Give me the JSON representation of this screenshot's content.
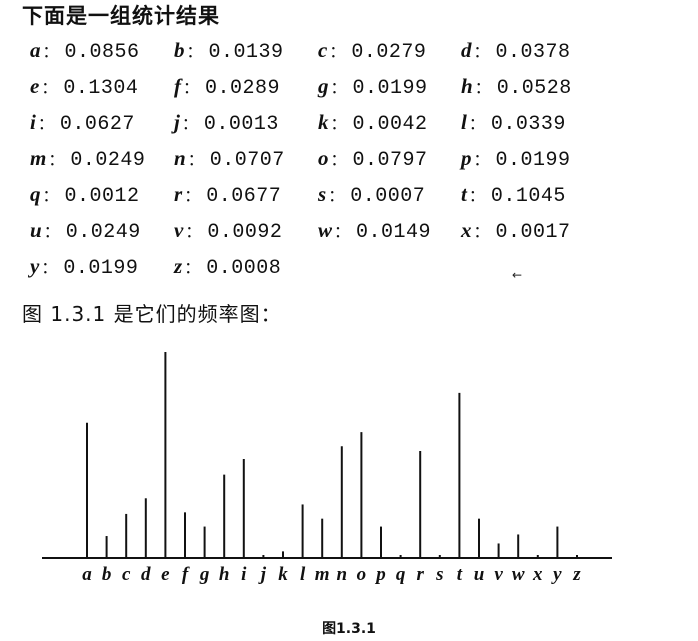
{
  "intro_text": "下面是一组统计结果",
  "frequencies": [
    {
      "letter": "a",
      "value": "0.0856"
    },
    {
      "letter": "b",
      "value": "0.0139"
    },
    {
      "letter": "c",
      "value": "0.0279"
    },
    {
      "letter": "d",
      "value": "0.0378"
    },
    {
      "letter": "e",
      "value": "0.1304"
    },
    {
      "letter": "f",
      "value": "0.0289"
    },
    {
      "letter": "g",
      "value": "0.0199"
    },
    {
      "letter": "h",
      "value": "0.0528"
    },
    {
      "letter": "i",
      "value": "0.0627"
    },
    {
      "letter": "j",
      "value": "0.0013"
    },
    {
      "letter": "k",
      "value": "0.0042"
    },
    {
      "letter": "l",
      "value": "0.0339"
    },
    {
      "letter": "m",
      "value": "0.0249"
    },
    {
      "letter": "n",
      "value": "0.0707"
    },
    {
      "letter": "o",
      "value": "0.0797"
    },
    {
      "letter": "p",
      "value": "0.0199"
    },
    {
      "letter": "q",
      "value": "0.0012"
    },
    {
      "letter": "r",
      "value": "0.0677"
    },
    {
      "letter": "s",
      "value": "0.0007"
    },
    {
      "letter": "t",
      "value": "0.1045"
    },
    {
      "letter": "u",
      "value": "0.0249"
    },
    {
      "letter": "v",
      "value": "0.0092"
    },
    {
      "letter": "w",
      "value": "0.0149"
    },
    {
      "letter": "x",
      "value": "0.0017"
    },
    {
      "letter": "y",
      "value": "0.0199"
    },
    {
      "letter": "z",
      "value": "0.0008"
    }
  ],
  "colon": "：",
  "stray_mark": "←",
  "caption_line": "图 1.3.1 是它们的频率图：",
  "figure_label": "图1.3.1",
  "chart_data": {
    "type": "bar",
    "title": "",
    "xlabel": "",
    "ylabel": "",
    "categories": [
      "a",
      "b",
      "c",
      "d",
      "e",
      "f",
      "g",
      "h",
      "i",
      "j",
      "k",
      "l",
      "m",
      "n",
      "o",
      "p",
      "q",
      "r",
      "s",
      "t",
      "u",
      "v",
      "w",
      "x",
      "y",
      "z"
    ],
    "values": [
      0.0856,
      0.0139,
      0.0279,
      0.0378,
      0.1304,
      0.0289,
      0.0199,
      0.0528,
      0.0627,
      0.0013,
      0.0042,
      0.0339,
      0.0249,
      0.0707,
      0.0797,
      0.0199,
      0.0012,
      0.0677,
      0.0007,
      0.1045,
      0.0249,
      0.0092,
      0.0149,
      0.0017,
      0.0199,
      0.0008
    ],
    "grid": false,
    "legend": "none"
  }
}
